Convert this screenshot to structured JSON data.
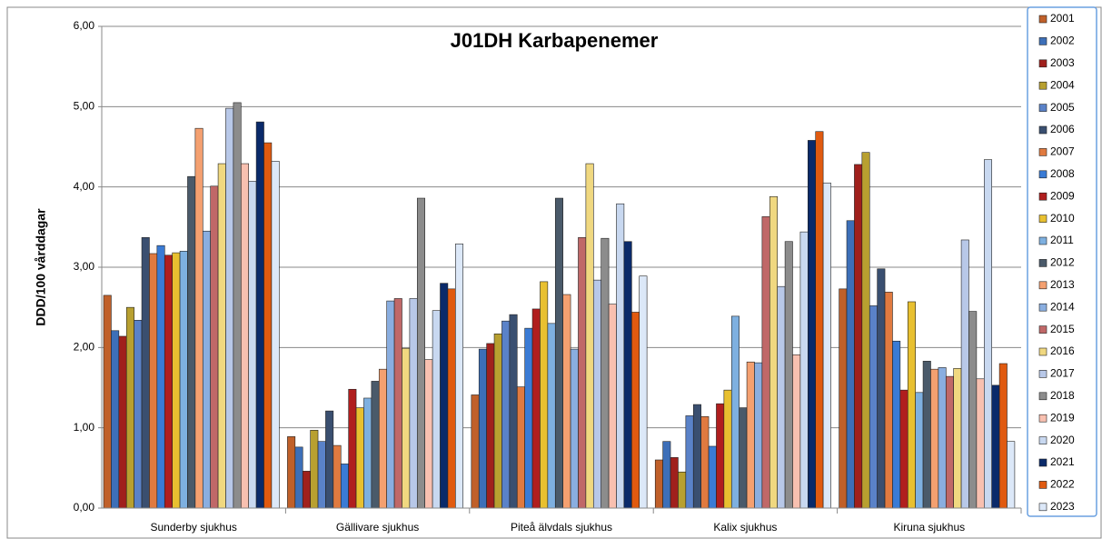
{
  "chart_data": {
    "type": "bar",
    "title": "J01DH Karbapenemer",
    "y_label": "DDD/100 vårddagar",
    "categories": [
      "Sunderby sjukhus",
      "Gällivare sjukhus",
      "Piteå älvdals sjukhus",
      "Kalix sjukhus",
      "Kiruna sjukhus"
    ],
    "ylim": [
      0,
      6
    ],
    "yticks": [
      {
        "value": 0,
        "label": "0,00"
      },
      {
        "value": 1,
        "label": "1,00"
      },
      {
        "value": 2,
        "label": "2,00"
      },
      {
        "value": 3,
        "label": "3,00"
      },
      {
        "value": 4,
        "label": "4,00"
      },
      {
        "value": 5,
        "label": "5,00"
      },
      {
        "value": 6,
        "label": "6,00"
      }
    ],
    "grid": true,
    "legend": "right",
    "series": [
      {
        "name": "2001",
        "color": "#c0602a",
        "values": [
          2.65,
          0.89,
          1.41,
          0.6,
          2.73
        ]
      },
      {
        "name": "2002",
        "color": "#3d6fb8",
        "values": [
          2.21,
          0.76,
          1.98,
          0.83,
          3.58
        ]
      },
      {
        "name": "2003",
        "color": "#a0201c",
        "values": [
          2.14,
          0.46,
          2.05,
          0.63,
          4.28
        ]
      },
      {
        "name": "2004",
        "color": "#b8a030",
        "values": [
          2.5,
          0.97,
          2.17,
          0.45,
          4.43
        ]
      },
      {
        "name": "2005",
        "color": "#5a82c8",
        "values": [
          2.34,
          0.83,
          2.33,
          1.15,
          2.52
        ]
      },
      {
        "name": "2006",
        "color": "#3a4f70",
        "values": [
          3.37,
          1.21,
          2.41,
          1.29,
          2.98
        ]
      },
      {
        "name": "2007",
        "color": "#e07a40",
        "values": [
          3.17,
          0.78,
          1.51,
          1.14,
          2.69
        ]
      },
      {
        "name": "2008",
        "color": "#3a7bd5",
        "values": [
          3.27,
          0.55,
          2.24,
          0.77,
          2.08
        ]
      },
      {
        "name": "2009",
        "color": "#b01e1e",
        "values": [
          3.15,
          1.48,
          2.48,
          1.3,
          1.47
        ]
      },
      {
        "name": "2010",
        "color": "#e8c030",
        "values": [
          3.18,
          1.25,
          2.82,
          1.47,
          2.57
        ]
      },
      {
        "name": "2011",
        "color": "#7eb0e0",
        "values": [
          3.2,
          1.37,
          2.3,
          2.39,
          1.44
        ]
      },
      {
        "name": "2012",
        "color": "#4a5a6a",
        "values": [
          4.13,
          1.58,
          3.86,
          1.25,
          1.83
        ]
      },
      {
        "name": "2013",
        "color": "#f4a070",
        "values": [
          4.73,
          1.73,
          2.66,
          1.82,
          1.73
        ]
      },
      {
        "name": "2014",
        "color": "#8aaee0",
        "values": [
          3.45,
          2.58,
          1.98,
          1.81,
          1.75
        ]
      },
      {
        "name": "2015",
        "color": "#c06868",
        "values": [
          4.01,
          2.61,
          3.37,
          3.63,
          1.64
        ]
      },
      {
        "name": "2016",
        "color": "#f0d880",
        "values": [
          4.29,
          1.99,
          4.29,
          3.88,
          1.74
        ]
      },
      {
        "name": "2017",
        "color": "#b8c8e8",
        "values": [
          4.98,
          2.61,
          2.84,
          2.76,
          3.34
        ]
      },
      {
        "name": "2018",
        "color": "#8c8c8c",
        "values": [
          5.05,
          3.86,
          3.36,
          3.32,
          2.45
        ]
      },
      {
        "name": "2019",
        "color": "#f8c0b0",
        "values": [
          4.29,
          1.85,
          2.54,
          1.91,
          1.61
        ]
      },
      {
        "name": "2020",
        "color": "#c8d8f0",
        "values": [
          4.07,
          2.46,
          3.79,
          3.44,
          4.34
        ]
      },
      {
        "name": "2021",
        "color": "#0a2a6a",
        "values": [
          4.81,
          2.8,
          3.32,
          4.58,
          1.53
        ]
      },
      {
        "name": "2022",
        "color": "#e05a10",
        "values": [
          4.55,
          2.73,
          2.44,
          4.69,
          1.8
        ]
      },
      {
        "name": "2023",
        "color": "#dce8f8",
        "values": [
          4.32,
          3.29,
          2.89,
          4.05,
          0.83
        ]
      }
    ]
  }
}
